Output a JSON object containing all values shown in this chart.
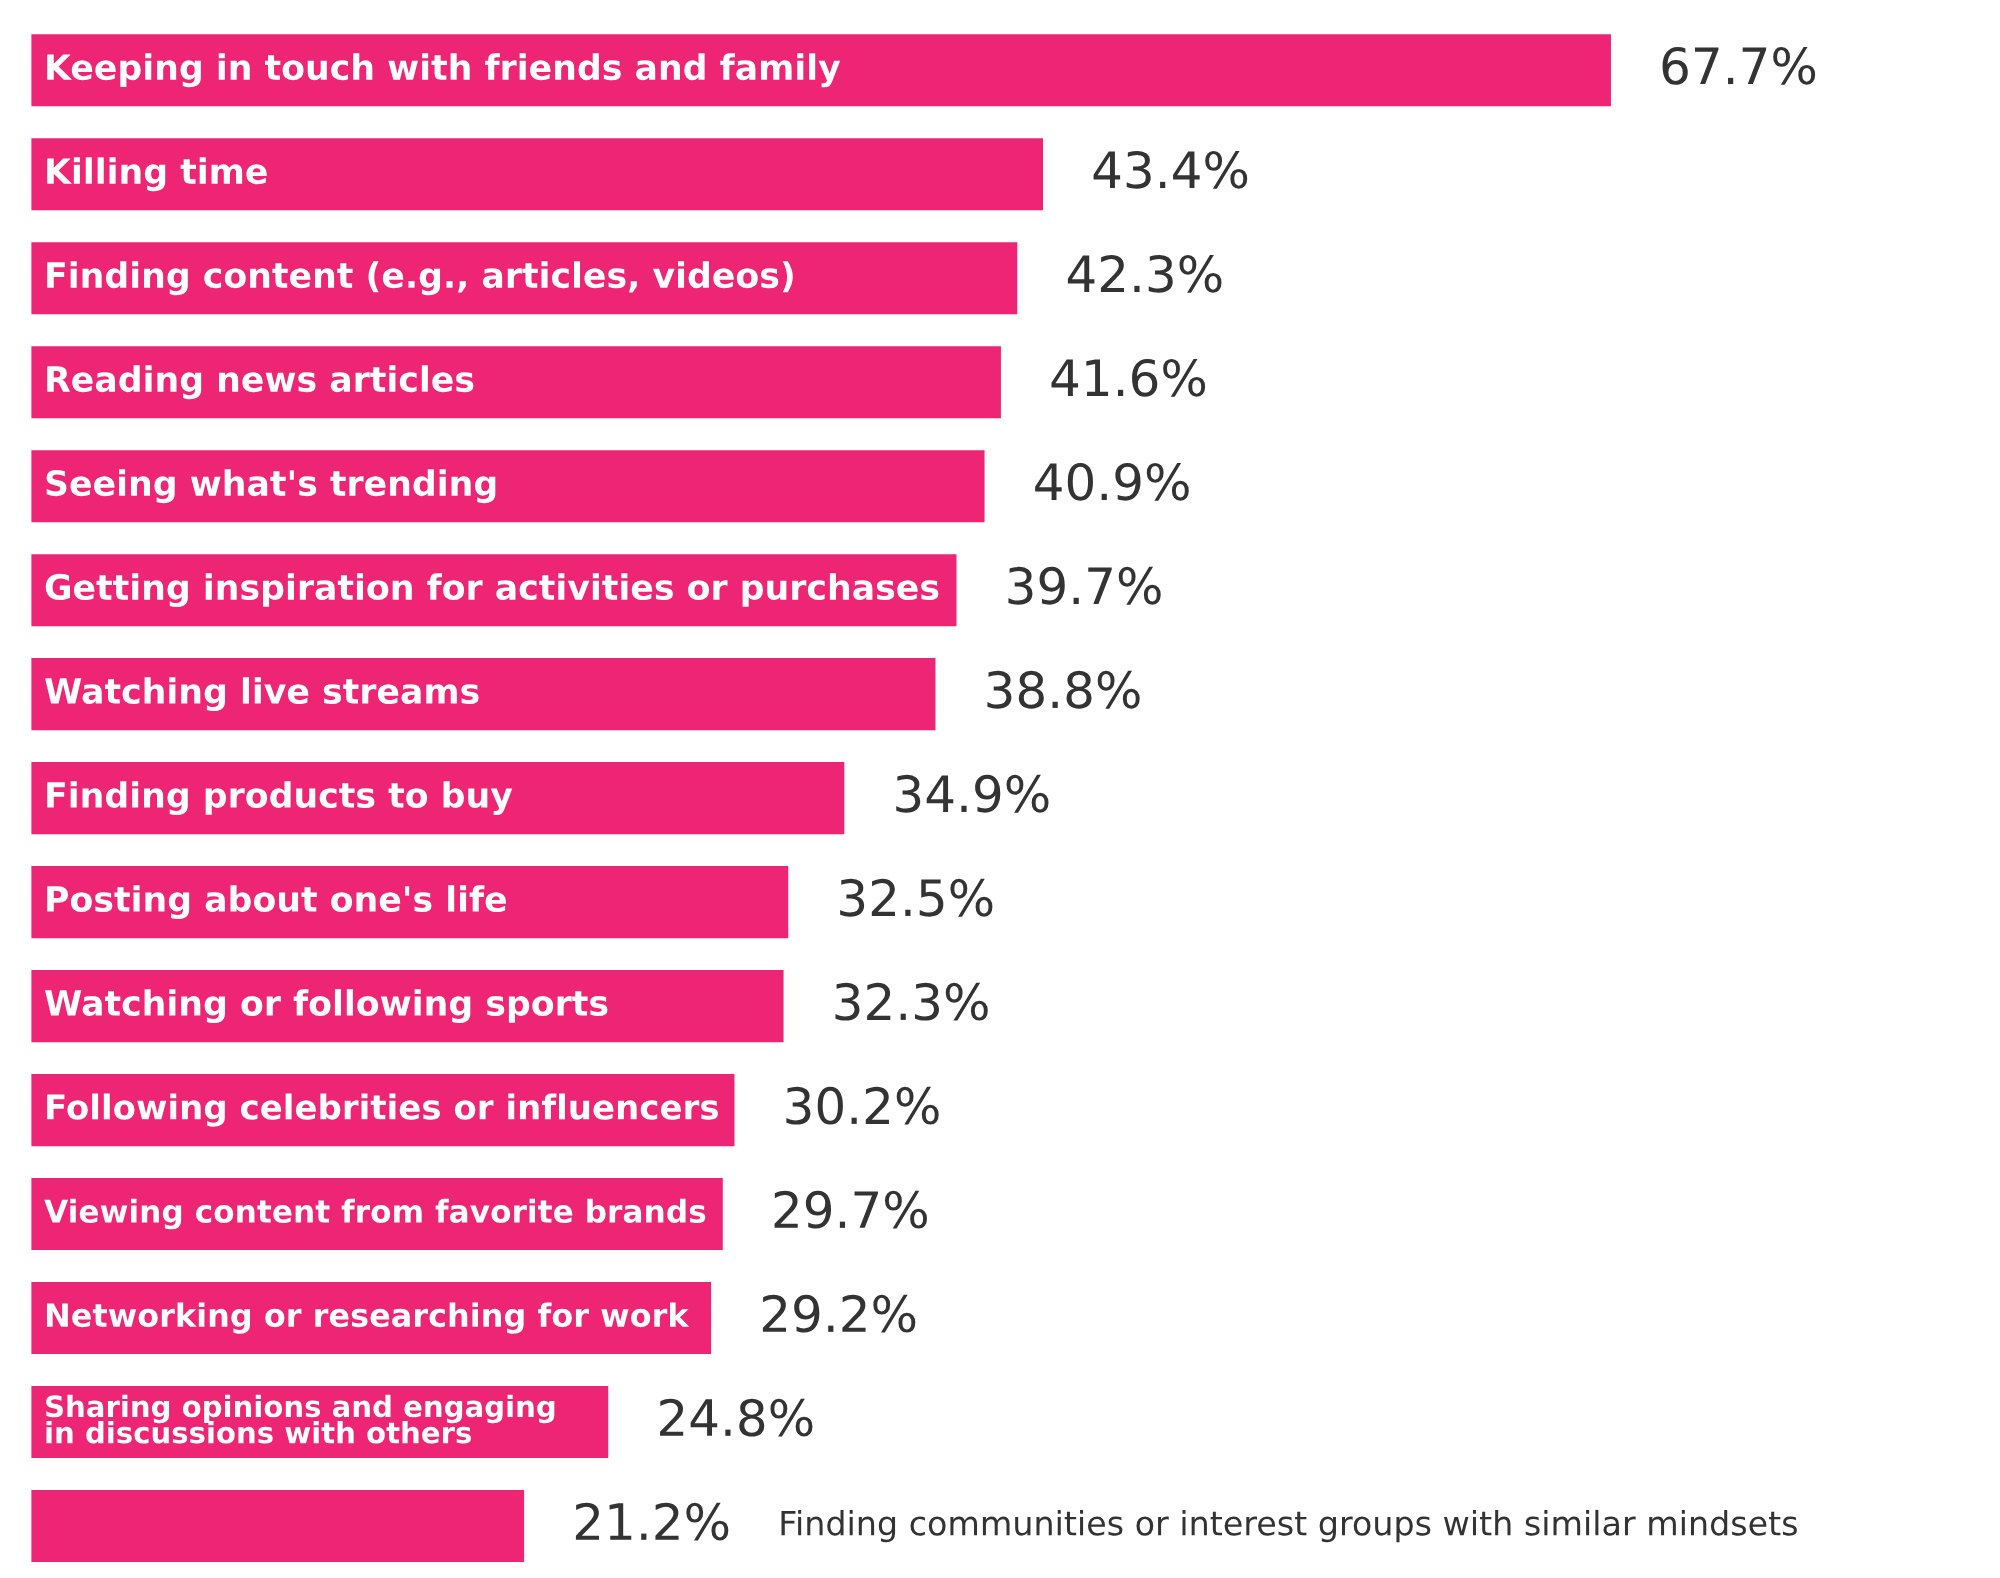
{
  "chart_data": {
    "type": "bar",
    "orientation": "horizontal",
    "color": "#ee2474",
    "categories": [
      "Keeping in touch with friends and family",
      "Killing time",
      "Finding content (e.g., articles, videos)",
      "Reading news articles",
      "Seeing what's trending",
      "Getting inspiration for activities or purchases",
      "Watching live streams",
      "Finding products to buy",
      "Posting about one's life",
      "Watching or following sports",
      "Following celebrities or influencers",
      "Viewing content from favorite brands",
      "Networking or researching for work",
      "Sharing opinions and engaging\nin discussions with others",
      "Finding communities or interest groups with similar mindsets"
    ],
    "values": [
      67.7,
      43.4,
      42.3,
      41.6,
      40.9,
      39.7,
      38.8,
      34.9,
      32.5,
      32.3,
      30.2,
      29.7,
      29.2,
      24.8,
      21.2
    ],
    "value_labels": [
      "67.7%",
      "43.4%",
      "42.3%",
      "41.6%",
      "40.9%",
      "39.7%",
      "38.8%",
      "34.9%",
      "32.5%",
      "32.3%",
      "30.2%",
      "29.7%",
      "29.2%",
      "24.8%",
      "21.2%"
    ],
    "legend": false
  }
}
